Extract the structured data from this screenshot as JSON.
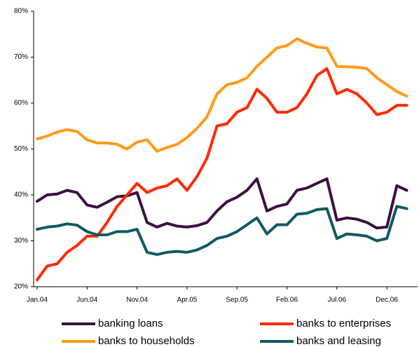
{
  "chart_data": {
    "type": "line",
    "categories": [
      "Jan.04",
      null,
      null,
      null,
      null,
      "Jun.04",
      null,
      null,
      null,
      null,
      "Nov.04",
      null,
      null,
      null,
      null,
      "Apr.05",
      null,
      null,
      null,
      null,
      "Sep.05",
      null,
      null,
      null,
      null,
      "Feb.06",
      null,
      null,
      null,
      null,
      "Jul.06",
      null,
      null,
      null,
      null,
      "Dec.06",
      null,
      null
    ],
    "series": [
      {
        "name": "banking loans",
        "color": "#3b1040",
        "values": [
          38.6,
          40,
          40.2,
          41,
          40.5,
          37.8,
          37.3,
          38.4,
          39.6,
          39.8,
          40.5,
          34,
          33,
          33.8,
          33.2,
          33,
          33.3,
          34,
          36.5,
          38.5,
          39.5,
          41,
          43.5,
          36.5,
          37.5,
          38,
          41,
          41.5,
          42.5,
          43.5,
          34.5,
          35,
          34.7,
          34,
          32.8,
          33,
          42,
          41
        ]
      },
      {
        "name": "banks to enterprises",
        "color": "#ff2a00",
        "values": [
          21.5,
          24.5,
          25,
          27.5,
          29,
          31,
          31,
          34,
          37.5,
          40,
          42.5,
          40.5,
          41.5,
          42,
          43.5,
          41,
          44,
          48,
          55,
          55.5,
          58,
          59,
          63,
          61,
          58,
          58,
          59,
          62,
          66,
          67.5,
          62,
          63,
          62,
          60,
          57.5,
          58,
          59.5,
          59.5
        ]
      },
      {
        "name": "banks to households",
        "color": "#ff9a1a",
        "values": [
          52.2,
          52.8,
          53.7,
          54.2,
          53.8,
          52,
          51.3,
          51.3,
          51,
          50,
          51.5,
          52,
          49.5,
          50.3,
          51,
          52.5,
          54.5,
          57,
          62,
          64,
          64.5,
          65.5,
          68,
          70,
          72,
          72.5,
          74,
          73,
          72.2,
          72,
          68,
          67.9,
          67.8,
          67.5,
          65.5,
          64,
          62.5,
          61.5
        ]
      },
      {
        "name": "banks and leasing",
        "color": "#0f5a63",
        "values": [
          32.5,
          33,
          33.2,
          33.7,
          33.4,
          32,
          31.3,
          31.3,
          32,
          32,
          32.5,
          27.5,
          27,
          27.5,
          27.7,
          27.5,
          28,
          29,
          30.5,
          31,
          32,
          33.5,
          35,
          31.5,
          33.5,
          33.5,
          35.8,
          36,
          36.8,
          37,
          30.5,
          31.5,
          31.3,
          31,
          30,
          30.5,
          37.5,
          37
        ]
      }
    ],
    "ylim": [
      20,
      80
    ],
    "yticks": [
      {
        "value": 20,
        "label": "20%"
      },
      {
        "value": 30,
        "label": "30%"
      },
      {
        "value": 40,
        "label": "40%"
      },
      {
        "value": 50,
        "label": "50%"
      },
      {
        "value": 60,
        "label": "60%"
      },
      {
        "value": 70,
        "label": "70%"
      },
      {
        "value": 80,
        "label": "80%"
      }
    ],
    "grid": false
  }
}
